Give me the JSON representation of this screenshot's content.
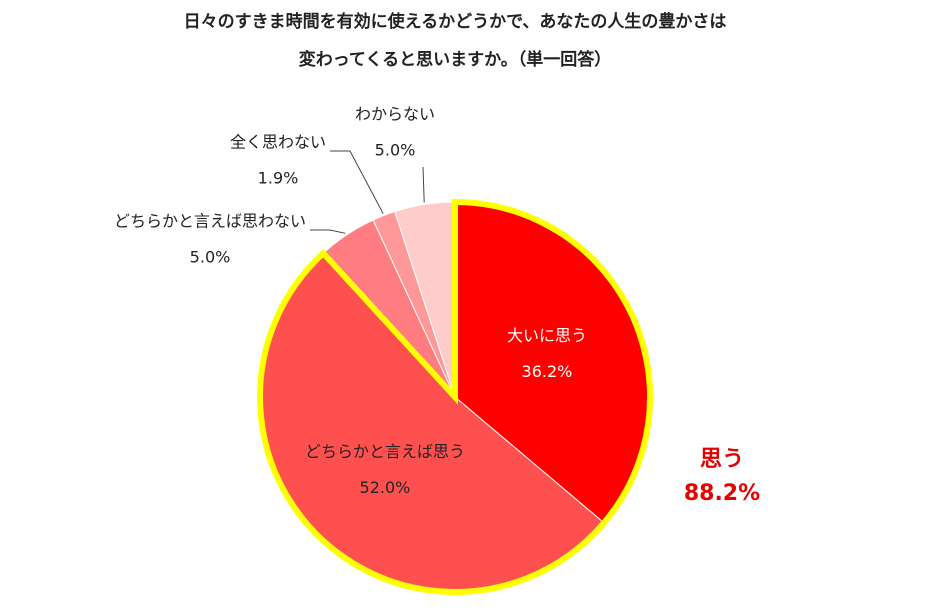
{
  "chart_data": {
    "type": "pie",
    "title": [
      "日々のすきま時間を有効に使えるかどうかで、あなたの人生の豊かさは",
      "変わってくると思いますか。（単一回答）"
    ],
    "categories": [
      "大いに思う",
      "どちらかと言えば思う",
      "どちらかと言えば思わない",
      "全く思わない",
      "わからない"
    ],
    "values": [
      36.2,
      52.0,
      5.0,
      1.9,
      5.0
    ],
    "value_labels": [
      "36.2%",
      "52.0%",
      "5.0%",
      "1.9%",
      "5.0%"
    ],
    "colors": [
      "#ff0000",
      "#ff5050",
      "#ff7c80",
      "#ff9999",
      "#ffcccc"
    ],
    "highlight": {
      "label": "思う",
      "value": 88.2,
      "value_label": "88.2%",
      "color": "#ffff00",
      "text_color": "#e60000"
    }
  }
}
